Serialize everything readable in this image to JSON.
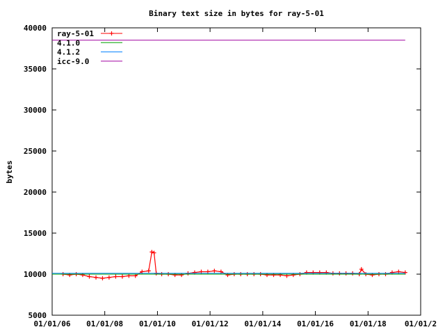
{
  "chart_data": {
    "type": "line",
    "title": "Binary text size in bytes for ray-5-01",
    "xlabel": "",
    "ylabel": "bytes",
    "ylim": [
      5000,
      40000
    ],
    "yticks": [
      5000,
      10000,
      15000,
      20000,
      25000,
      30000,
      35000,
      40000
    ],
    "xlim": [
      "2006-01-01",
      "2020-01-01"
    ],
    "xtick_labels": [
      "01/01/06",
      "01/01/08",
      "01/01/10",
      "01/01/12",
      "01/01/14",
      "01/01/16",
      "01/01/18",
      "01/01/2"
    ],
    "grid": false,
    "legend": "top-left",
    "series": [
      {
        "name": "ray-5-01",
        "color": "#ff0000",
        "marker": "plus",
        "points": [
          [
            "2006-06-01",
            10000
          ],
          [
            "2006-09-01",
            9900
          ],
          [
            "2006-12-01",
            10000
          ],
          [
            "2007-03-01",
            9900
          ],
          [
            "2007-06-01",
            9700
          ],
          [
            "2007-09-01",
            9600
          ],
          [
            "2007-12-01",
            9500
          ],
          [
            "2008-03-01",
            9600
          ],
          [
            "2008-06-01",
            9700
          ],
          [
            "2008-09-01",
            9700
          ],
          [
            "2008-12-01",
            9800
          ],
          [
            "2009-03-01",
            9800
          ],
          [
            "2009-06-01",
            10300
          ],
          [
            "2009-09-01",
            10400
          ],
          [
            "2009-10-15",
            12700
          ],
          [
            "2009-11-15",
            12600
          ],
          [
            "2009-12-15",
            10100
          ],
          [
            "2010-03-01",
            10000
          ],
          [
            "2010-06-01",
            10000
          ],
          [
            "2010-09-01",
            9900
          ],
          [
            "2010-12-01",
            9900
          ],
          [
            "2011-03-01",
            10100
          ],
          [
            "2011-06-01",
            10200
          ],
          [
            "2011-09-01",
            10300
          ],
          [
            "2011-12-01",
            10300
          ],
          [
            "2012-03-01",
            10400
          ],
          [
            "2012-06-01",
            10300
          ],
          [
            "2012-09-01",
            9900
          ],
          [
            "2012-12-01",
            10000
          ],
          [
            "2013-03-01",
            10000
          ],
          [
            "2013-06-01",
            10000
          ],
          [
            "2013-09-01",
            10000
          ],
          [
            "2013-12-01",
            10000
          ],
          [
            "2014-03-01",
            9900
          ],
          [
            "2014-06-01",
            9900
          ],
          [
            "2014-09-01",
            9900
          ],
          [
            "2014-12-01",
            9800
          ],
          [
            "2015-03-01",
            9900
          ],
          [
            "2015-06-01",
            10000
          ],
          [
            "2015-09-01",
            10200
          ],
          [
            "2015-12-01",
            10200
          ],
          [
            "2016-03-01",
            10200
          ],
          [
            "2016-06-01",
            10200
          ],
          [
            "2016-09-01",
            10100
          ],
          [
            "2016-12-01",
            10100
          ],
          [
            "2017-03-01",
            10100
          ],
          [
            "2017-06-01",
            10100
          ],
          [
            "2017-09-01",
            10000
          ],
          [
            "2017-10-01",
            10600
          ],
          [
            "2017-12-01",
            10000
          ],
          [
            "2018-03-01",
            9900
          ],
          [
            "2018-06-01",
            10000
          ],
          [
            "2018-09-01",
            10000
          ],
          [
            "2018-12-01",
            10200
          ],
          [
            "2019-03-01",
            10300
          ],
          [
            "2019-06-01",
            10200
          ]
        ]
      },
      {
        "name": "4.1.0",
        "color": "#00a000",
        "points": [
          [
            "2006-01-01",
            10000
          ],
          [
            "2019-06-01",
            10000
          ]
        ]
      },
      {
        "name": "4.1.2",
        "color": "#0080ff",
        "points": [
          [
            "2006-01-01",
            10100
          ],
          [
            "2019-06-01",
            10100
          ]
        ]
      },
      {
        "name": "icc-9.0",
        "color": "#a000a0",
        "points": [
          [
            "2006-01-01",
            38500
          ],
          [
            "2019-06-01",
            38500
          ]
        ]
      }
    ]
  }
}
